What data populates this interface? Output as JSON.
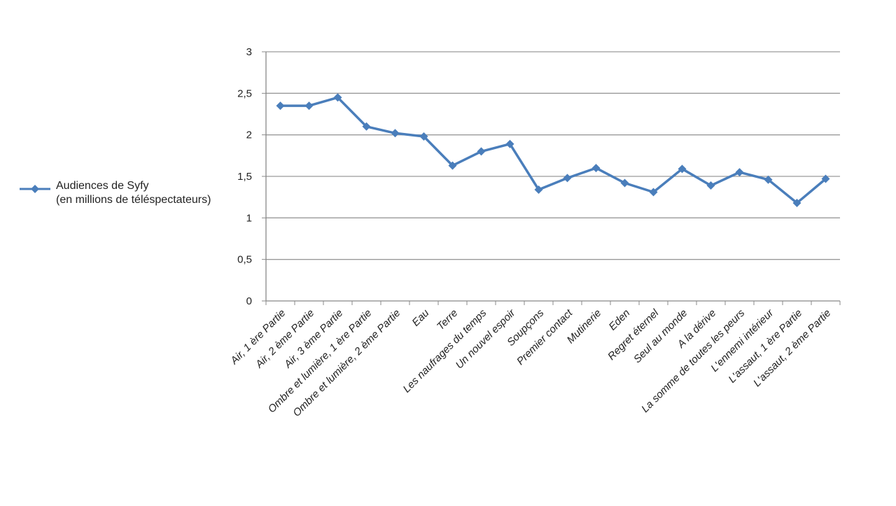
{
  "chart_data": {
    "type": "line",
    "categories": [
      "Air, 1 ère Partie",
      "Air, 2 ème Partie",
      "Air, 3 ème Partie",
      "Ombre et lumière, 1 ère Partie",
      "Ombre et lumière, 2 ème Partie",
      "Eau",
      "Terre",
      "Les naufrages du temps",
      "Un nouvel espoir",
      "Soupçons",
      "Premier contact",
      "Mutinerie",
      "Eden",
      "Regret éternel",
      "Seul au monde",
      "A la dérive",
      "La somme de toutes les peurs",
      "L'ennemi intérieur",
      "L'assaut, 1 ère Partie",
      "L'assaut, 2 ème Partie"
    ],
    "series": [
      {
        "name": "Audiences de Syfy (en millions de téléspectateurs)",
        "name_lines": [
          "Audiences de Syfy",
          "(en millions de téléspectateurs)"
        ],
        "values": [
          2.35,
          2.35,
          2.45,
          2.1,
          2.02,
          1.98,
          1.63,
          1.8,
          1.89,
          1.34,
          1.48,
          1.6,
          1.42,
          1.31,
          1.59,
          1.39,
          1.55,
          1.46,
          1.18,
          1.47
        ],
        "color": "#4a7ebb"
      }
    ],
    "y_ticks": [
      "0",
      "0,5",
      "1",
      "1,5",
      "2",
      "2,5",
      "3"
    ],
    "ylim": [
      0,
      3
    ],
    "grid": true,
    "legend_position": "left"
  }
}
